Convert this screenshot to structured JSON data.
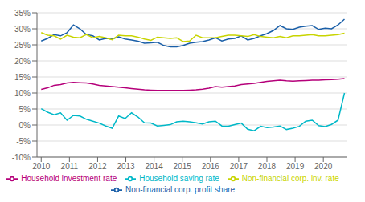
{
  "chart_data": {
    "type": "line",
    "x": [
      2010,
      2010.2287,
      2010.4574,
      2010.6862,
      2010.9149,
      2011.1436,
      2011.3723,
      2011.6011,
      2011.8298,
      2012.0585,
      2012.2872,
      2012.516,
      2012.7447,
      2012.9734,
      2013.2021,
      2013.4309,
      2013.6596,
      2013.8883,
      2014.117,
      2014.3457,
      2014.5745,
      2014.8032,
      2015.0319,
      2015.2606,
      2015.4894,
      2015.7181,
      2015.9468,
      2016.1755,
      2016.4043,
      2016.633,
      2016.8617,
      2017.0904,
      2017.3191,
      2017.5479,
      2017.7766,
      2018.0053,
      2018.234,
      2018.4628,
      2018.6915,
      2018.9202,
      2019.1489,
      2019.3777,
      2019.6064,
      2019.8351,
      2020.0638,
      2020.2926,
      2020.5213,
      2020.75
    ],
    "series": [
      {
        "name": "Non-financial corp. profit share",
        "color": "#1a5fa8",
        "values": [
          0.262,
          0.27,
          0.282,
          0.278,
          0.288,
          0.312,
          0.3,
          0.282,
          0.278,
          0.265,
          0.27,
          0.268,
          0.275,
          0.268,
          0.265,
          0.261,
          0.255,
          0.256,
          0.258,
          0.248,
          0.244,
          0.244,
          0.248,
          0.255,
          0.258,
          0.26,
          0.265,
          0.272,
          0.262,
          0.268,
          0.27,
          0.278,
          0.265,
          0.27,
          0.278,
          0.285,
          0.295,
          0.31,
          0.3,
          0.298,
          0.305,
          0.308,
          0.31,
          0.298,
          0.302,
          0.3,
          0.312,
          0.33
        ]
      },
      {
        "name": "Household investment rate",
        "color": "#b5007a",
        "values": [
          0.111,
          0.116,
          0.124,
          0.126,
          0.131,
          0.133,
          0.132,
          0.131,
          0.128,
          0.124,
          0.122,
          0.12,
          0.118,
          0.116,
          0.114,
          0.112,
          0.11,
          0.109,
          0.108,
          0.108,
          0.108,
          0.108,
          0.108,
          0.109,
          0.11,
          0.112,
          0.115,
          0.12,
          0.118,
          0.12,
          0.122,
          0.126,
          0.128,
          0.13,
          0.133,
          0.136,
          0.138,
          0.14,
          0.138,
          0.137,
          0.138,
          0.139,
          0.14,
          0.14,
          0.141,
          0.142,
          0.143,
          0.145
        ]
      },
      {
        "name": "Non-financial corp. inv. rate",
        "color": "#c8d400",
        "values": [
          0.288,
          0.28,
          0.278,
          0.268,
          0.28,
          0.274,
          0.272,
          0.282,
          0.272,
          0.276,
          0.272,
          0.266,
          0.28,
          0.278,
          0.278,
          0.274,
          0.268,
          0.264,
          0.274,
          0.272,
          0.27,
          0.272,
          0.26,
          0.262,
          0.28,
          0.272,
          0.272,
          0.272,
          0.276,
          0.28,
          0.28,
          0.278,
          0.276,
          0.282,
          0.276,
          0.274,
          0.272,
          0.276,
          0.272,
          0.278,
          0.278,
          0.28,
          0.282,
          0.278,
          0.278,
          0.28,
          0.282,
          0.286
        ]
      },
      {
        "name": "Household saving rate",
        "color": "#00b8c8",
        "values": [
          0.051,
          0.04,
          0.032,
          0.038,
          0.015,
          0.03,
          0.028,
          0.018,
          0.012,
          0.006,
          -0.003,
          -0.01,
          0.028,
          0.02,
          0.038,
          0.025,
          0.007,
          0.006,
          -0.003,
          -0.001,
          0.001,
          0.01,
          0.012,
          0.01,
          0.007,
          0.003,
          0.01,
          0.012,
          -0.003,
          -0.004,
          0.001,
          0.006,
          -0.013,
          -0.018,
          -0.004,
          -0.008,
          -0.006,
          -0.003,
          -0.014,
          -0.01,
          -0.004,
          0.012,
          0.015,
          -0.002,
          -0.005,
          0.002,
          0.015,
          0.1
        ]
      }
    ],
    "xlim": [
      2009.85,
      2020.85
    ],
    "xticks": [
      2010,
      2011,
      2012,
      2013,
      2014,
      2015,
      2016,
      2017,
      2018,
      2019,
      2020
    ],
    "ylim": [
      -0.1,
      0.35
    ],
    "yticks": [
      {
        "value": -0.1,
        "label": "-10%"
      },
      {
        "value": -0.05,
        "label": "-5%"
      },
      {
        "value": 0,
        "label": "0%"
      },
      {
        "value": 0.05,
        "label": "5%"
      },
      {
        "value": 0.1,
        "label": "10%"
      },
      {
        "value": 0.15,
        "label": "15%"
      },
      {
        "value": 0.2,
        "label": "20%"
      },
      {
        "value": 0.25,
        "label": "25%"
      },
      {
        "value": 0.3,
        "label": "30%"
      },
      {
        "value": 0.35,
        "label": "35%"
      }
    ],
    "grid": true,
    "legend": "bottom"
  }
}
